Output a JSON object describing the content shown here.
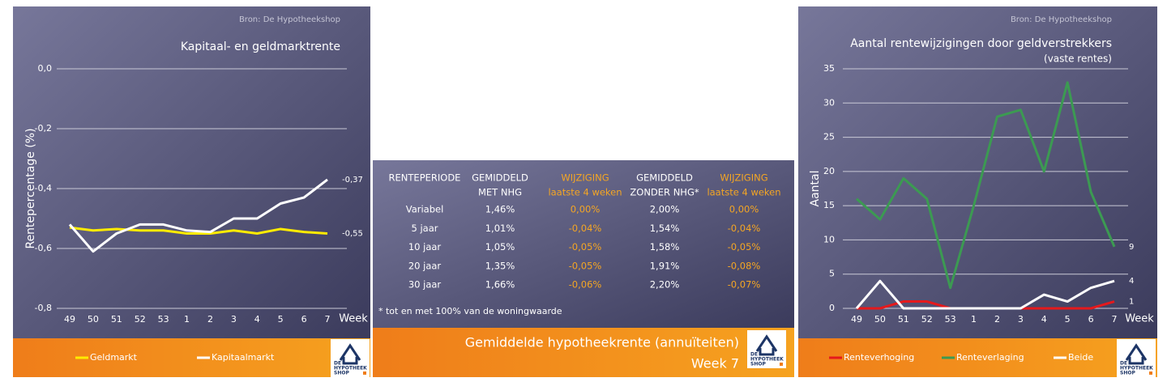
{
  "chart_data": [
    {
      "type": "line",
      "title": "Kapitaal- en geldmarktrente",
      "source": "Bron: De Hypotheekshop",
      "y_label": "Rentepercentage (%)",
      "x_label": "Week",
      "categories": [
        "49",
        "50",
        "51",
        "52",
        "53",
        "1",
        "2",
        "3",
        "4",
        "5",
        "6",
        "7"
      ],
      "ylim": [
        -0.8,
        0
      ],
      "yticks": [
        {
          "value": 0,
          "label": "0,0"
        },
        {
          "value": -0.2,
          "label": "-0,2"
        },
        {
          "value": -0.4,
          "label": "-0,4"
        },
        {
          "value": -0.6,
          "label": "-0,6"
        },
        {
          "value": -0.8,
          "label": "-0,8"
        }
      ],
      "grid": true,
      "legend": "bottom",
      "series": [
        {
          "name": "Geldmarkt",
          "color": "#ffeb00",
          "values": [
            -0.53,
            -0.54,
            -0.535,
            -0.54,
            -0.54,
            -0.55,
            -0.55,
            -0.54,
            -0.55,
            -0.535,
            -0.545,
            -0.55
          ],
          "value_labels": [
            null,
            null,
            null,
            null,
            null,
            null,
            null,
            null,
            null,
            null,
            null,
            "-0,55"
          ]
        },
        {
          "name": "Kapitaalmarkt",
          "color": "#ffffff",
          "values": [
            -0.52,
            -0.61,
            -0.55,
            -0.52,
            -0.52,
            -0.54,
            -0.545,
            -0.5,
            -0.5,
            -0.45,
            -0.43,
            -0.37
          ],
          "value_labels": [
            null,
            null,
            null,
            null,
            null,
            null,
            null,
            null,
            null,
            null,
            null,
            "-0,37"
          ]
        }
      ]
    },
    {
      "type": "line",
      "title": "Aantal rentewijzigingen door geldverstrekkers",
      "subtitle": "(vaste rentes)",
      "source": "Bron: De Hypotheekshop",
      "y_label": "Aantal",
      "x_label": "Week",
      "categories": [
        "49",
        "50",
        "51",
        "52",
        "53",
        "1",
        "2",
        "3",
        "4",
        "5",
        "6",
        "7"
      ],
      "ylim": [
        0,
        35
      ],
      "yticks": [
        0,
        5,
        10,
        15,
        20,
        25,
        30,
        35
      ],
      "grid": true,
      "legend": "bottom",
      "series": [
        {
          "name": "Renteverhoging",
          "color": "#e5191c",
          "values": [
            0,
            0,
            1,
            1,
            0,
            0,
            0,
            0,
            0,
            0,
            0,
            1
          ],
          "value_labels": [
            null,
            null,
            null,
            null,
            null,
            null,
            null,
            null,
            null,
            null,
            null,
            "1"
          ]
        },
        {
          "name": "Renteverlaging",
          "color": "#3c9a52",
          "values": [
            16,
            13,
            19,
            16,
            3,
            15,
            28,
            29,
            20,
            33,
            17,
            9
          ],
          "value_labels": [
            null,
            null,
            null,
            null,
            null,
            null,
            null,
            null,
            null,
            null,
            null,
            "9"
          ]
        },
        {
          "name": "Beide",
          "color": "#ffffff",
          "values": [
            0,
            4,
            0,
            0,
            0,
            0,
            0,
            0,
            2,
            1,
            3,
            4
          ],
          "value_labels": [
            null,
            null,
            null,
            null,
            null,
            null,
            null,
            null,
            null,
            null,
            null,
            "4"
          ]
        }
      ]
    }
  ],
  "table": {
    "columns": [
      [
        "RENTEPERIODE"
      ],
      [
        "GEMIDDELD",
        "MET NHG"
      ],
      [
        "WIJZIGING",
        "laatste 4 weken"
      ],
      [
        "GEMIDDELD",
        "ZONDER NHG*"
      ],
      [
        "WIJZIGING",
        "laatste 4 weken"
      ]
    ],
    "rows": [
      [
        "Variabel",
        "1,46%",
        "0,00%",
        "2,00%",
        "0,00%"
      ],
      [
        "5 jaar",
        "1,01%",
        "-0,04%",
        "1,54%",
        "-0,04%"
      ],
      [
        "10 jaar",
        "1,05%",
        "-0,05%",
        "1,58%",
        "-0,05%"
      ],
      [
        "20 jaar",
        "1,35%",
        "-0,05%",
        "1,91%",
        "-0,08%"
      ],
      [
        "30 jaar",
        "1,66%",
        "-0,06%",
        "2,20%",
        "-0,07%"
      ]
    ],
    "footnote": "* tot en met 100% van de woningwaarde"
  },
  "footer": {
    "title": "Gemiddelde hypotheekrente (annuïteiten)",
    "subtitle": "Week 7"
  },
  "logo": [
    "DE",
    "HYPOTHEEK",
    "SHOP"
  ]
}
